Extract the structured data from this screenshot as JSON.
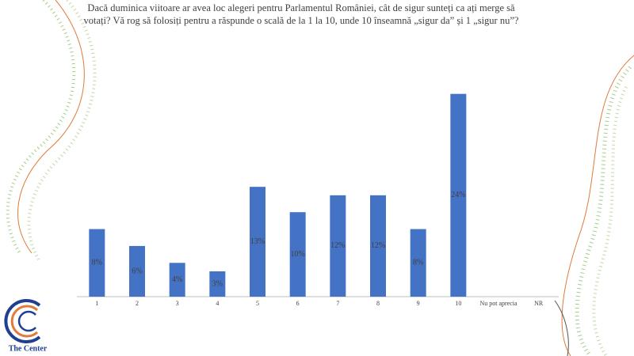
{
  "chart_data": {
    "type": "bar",
    "title": "Dacă duminica viitoare ar avea loc alegeri pentru Parlamentul României, cât de sigur sunteți ca ați merge să votați? Vă rog să folosiți pentru a răspunde o scală de la 1 la 10, unde 10 înseamnă „sigur da” și 1 „sigur nu”?",
    "categories": [
      "1",
      "2",
      "3",
      "4",
      "5",
      "6",
      "7",
      "8",
      "9",
      "10",
      "Nu pot aprecia",
      "NR"
    ],
    "values": [
      8,
      6,
      4,
      3,
      13,
      10,
      12,
      12,
      8,
      24,
      null,
      null
    ],
    "value_labels": [
      "8%",
      "6%",
      "4%",
      "3%",
      "13%",
      "10%",
      "12%",
      "12%",
      "8%",
      "24%",
      null,
      null
    ],
    "color": "#4472c4",
    "ylim": [
      0,
      25
    ]
  },
  "logo": "The Center"
}
